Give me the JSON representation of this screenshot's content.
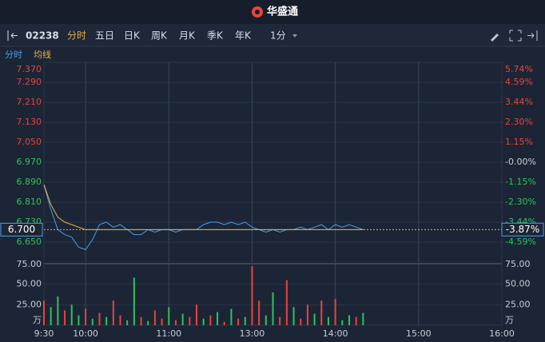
{
  "header": {
    "title": "华盛通"
  },
  "toolbar": {
    "code": "02238",
    "tabs": [
      "分时",
      "五日",
      "日K",
      "周K",
      "月K",
      "季K",
      "年K"
    ],
    "interval": "1分"
  },
  "indicators": [
    "分时",
    "均线"
  ],
  "chart_data": {
    "type": "line",
    "x": [
      0,
      5,
      10,
      15,
      20,
      25,
      30,
      35,
      40,
      45,
      50,
      55,
      60,
      65,
      70,
      75,
      80,
      85,
      90,
      95,
      100,
      105,
      110,
      115,
      120,
      125,
      130,
      135,
      140,
      145,
      150,
      155,
      160,
      165,
      170,
      175,
      180,
      185,
      190,
      195,
      200,
      205,
      210,
      215,
      220,
      225,
      230
    ],
    "xlim": [
      0,
      330
    ],
    "xticks": [
      {
        "value": 0,
        "label": "9:30"
      },
      {
        "value": 30,
        "label": "10:00"
      },
      {
        "value": 90,
        "label": "11:00"
      },
      {
        "value": 150,
        "label": "13:00"
      },
      {
        "value": 210,
        "label": "14:00"
      },
      {
        "value": 270,
        "label": "15:00"
      },
      {
        "value": 330,
        "label": "16:00"
      }
    ],
    "ylim": [
      6.57,
      7.37
    ],
    "yticks": [
      {
        "value": 7.37,
        "label": "7.370"
      },
      {
        "value": 7.29,
        "label": "7.290"
      },
      {
        "value": 7.21,
        "label": "7.210"
      },
      {
        "value": 7.13,
        "label": "7.130"
      },
      {
        "value": 7.05,
        "label": "7.050"
      },
      {
        "value": 6.97,
        "label": "6.970"
      },
      {
        "value": 6.89,
        "label": "6.890"
      },
      {
        "value": 6.81,
        "label": "6.810"
      },
      {
        "value": 6.73,
        "label": "6.730"
      },
      {
        "value": 6.65,
        "label": "6.650"
      }
    ],
    "y2lim": [
      -5.74,
      5.74
    ],
    "y2ticks": [
      {
        "value": 5.74,
        "label": "5.74%"
      },
      {
        "value": 4.59,
        "label": "4.59%"
      },
      {
        "value": 3.44,
        "label": "3.44%"
      },
      {
        "value": 2.3,
        "label": "2.30%"
      },
      {
        "value": 1.15,
        "label": "1.15%"
      },
      {
        "value": 0,
        "label": "-0.00%"
      },
      {
        "value": -1.15,
        "label": "-1.15%"
      },
      {
        "value": -2.3,
        "label": "-2.30%"
      },
      {
        "value": -3.44,
        "label": "-3.44%"
      },
      {
        "value": -4.59,
        "label": "-4.59%"
      }
    ],
    "series": [
      {
        "color": "#4a9fe8",
        "values": [
          6.88,
          6.78,
          6.7,
          6.68,
          6.67,
          6.63,
          6.62,
          6.66,
          6.72,
          6.73,
          6.71,
          6.72,
          6.7,
          6.68,
          6.68,
          6.7,
          6.69,
          6.7,
          6.7,
          6.69,
          6.7,
          6.7,
          6.7,
          6.72,
          6.73,
          6.73,
          6.72,
          6.73,
          6.72,
          6.73,
          6.71,
          6.7,
          6.69,
          6.7,
          6.69,
          6.7,
          6.7,
          6.71,
          6.7,
          6.71,
          6.72,
          6.7,
          6.72,
          6.71,
          6.72,
          6.71,
          6.7
        ]
      },
      {
        "color": "#e8b14a",
        "values": [
          6.88,
          6.8,
          6.75,
          6.73,
          6.72,
          6.71,
          6.7,
          6.7,
          6.7,
          6.7,
          6.7,
          6.7,
          6.7,
          6.7,
          6.7,
          6.7,
          6.7,
          6.7,
          6.7,
          6.7,
          6.7,
          6.7,
          6.7,
          6.7,
          6.7,
          6.7,
          6.7,
          6.7,
          6.7,
          6.7,
          6.7,
          6.7,
          6.7,
          6.7,
          6.7,
          6.7,
          6.7,
          6.7,
          6.7,
          6.7,
          6.7,
          6.7,
          6.7,
          6.7,
          6.7,
          6.7,
          6.7
        ]
      }
    ],
    "last_price": {
      "value": 6.7,
      "label": "6.700"
    },
    "change": {
      "value": -3.87,
      "label": "-3.87%"
    },
    "volume": {
      "ylim": [
        0,
        75
      ],
      "yticks": [
        {
          "value": 75,
          "label": "75.00"
        },
        {
          "value": 50,
          "label": "50.00"
        },
        {
          "value": 25,
          "label": "25.00"
        },
        {
          "value": 0,
          "label": "万"
        }
      ],
      "values": [
        30,
        22,
        35,
        18,
        25,
        12,
        20,
        8,
        15,
        10,
        30,
        12,
        6,
        58,
        10,
        5,
        18,
        8,
        22,
        6,
        14,
        10,
        25,
        8,
        12,
        16,
        4,
        20,
        8,
        10,
        72,
        30,
        12,
        40,
        10,
        55,
        22,
        8,
        25,
        14,
        30,
        10,
        32,
        6,
        12,
        10,
        15
      ],
      "colors": [
        "#e8443c",
        "#2fc25b",
        "#2fc25b",
        "#e8443c",
        "#2fc25b",
        "#2fc25b",
        "#e8443c",
        "#2fc25b",
        "#e8443c",
        "#2fc25b",
        "#e8443c",
        "#e8443c",
        "#2fc25b",
        "#2fc25b",
        "#e8443c",
        "#2fc25b",
        "#e8443c",
        "#e8443c",
        "#2fc25b",
        "#e8443c",
        "#2fc25b",
        "#e8443c",
        "#e8443c",
        "#2fc25b",
        "#e8443c",
        "#2fc25b",
        "#e8443c",
        "#2fc25b",
        "#e8443c",
        "#2fc25b",
        "#e8443c",
        "#e8443c",
        "#2fc25b",
        "#2fc25b",
        "#e8443c",
        "#e8443c",
        "#2fc25b",
        "#e8443c",
        "#e8443c",
        "#2fc25b",
        "#e8443c",
        "#2fc25b",
        "#e8443c",
        "#2fc25b",
        "#2fc25b",
        "#e8443c",
        "#2fc25b"
      ]
    }
  }
}
